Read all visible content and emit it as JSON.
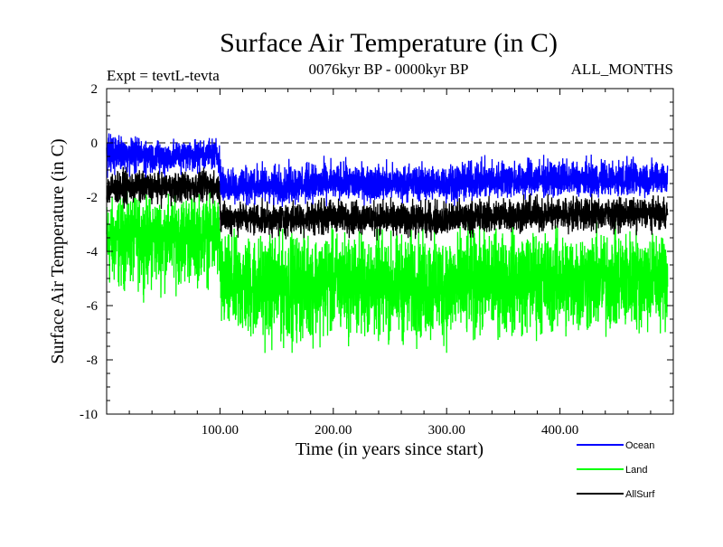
{
  "chart_data": {
    "type": "line",
    "title": "Surface Air Temperature (in C)",
    "subtitle_left": "Expt = tevtL-tevta",
    "subtitle_center": "0076kyr BP - 0000kyr BP",
    "subtitle_right": "ALL_MONTHS",
    "xlabel": "Time (in years since start)",
    "ylabel": "Surface Air Temperature (in C)",
    "xlim": [
      0,
      500
    ],
    "ylim": [
      -10,
      2
    ],
    "x_ticks": [
      {
        "value": 100,
        "label": "100.00"
      },
      {
        "value": 200,
        "label": "200.00"
      },
      {
        "value": 300,
        "label": "300.00"
      },
      {
        "value": 400,
        "label": "400.00"
      }
    ],
    "y_ticks": [
      {
        "value": 2,
        "label": "2"
      },
      {
        "value": 0,
        "label": "0"
      },
      {
        "value": -2,
        "label": "-2"
      },
      {
        "value": -4,
        "label": "-4"
      },
      {
        "value": -6,
        "label": "-6"
      },
      {
        "value": -8,
        "label": "-8"
      },
      {
        "value": -10,
        "label": "-10"
      }
    ],
    "reference_line": {
      "y": 0,
      "style": "dashed"
    },
    "legend": {
      "placement": "bottom-right"
    },
    "series": [
      {
        "name": "Land",
        "color": "#00ff00",
        "x": [
          0,
          25,
          50,
          75,
          99,
          101,
          150,
          200,
          250,
          300,
          350,
          400,
          450,
          495
        ],
        "mean": [
          -3.5,
          -3.4,
          -3.4,
          -3.3,
          -3.3,
          -5.1,
          -5.2,
          -5.1,
          -5.2,
          -5.2,
          -5.0,
          -5.0,
          -5.0,
          -4.9
        ],
        "min": [
          -6.2,
          -6.0,
          -6.1,
          -5.9,
          -5.8,
          -8.0,
          -8.3,
          -7.9,
          -8.1,
          -8.3,
          -7.8,
          -7.9,
          -7.8,
          -7.6
        ],
        "max": [
          -1.5,
          -1.4,
          -1.5,
          -1.3,
          -1.4,
          -2.8,
          -2.7,
          -2.6,
          -2.7,
          -2.6,
          -2.5,
          -2.6,
          -2.5,
          -2.6
        ]
      },
      {
        "name": "AllSurf",
        "color": "#000000",
        "x": [
          0,
          25,
          50,
          75,
          99,
          101,
          150,
          200,
          250,
          300,
          350,
          400,
          450,
          495
        ],
        "mean": [
          -1.7,
          -1.6,
          -1.6,
          -1.6,
          -1.6,
          -2.7,
          -2.8,
          -2.7,
          -2.8,
          -2.8,
          -2.7,
          -2.6,
          -2.6,
          -2.6
        ],
        "min": [
          -2.6,
          -2.5,
          -2.5,
          -2.5,
          -2.4,
          -3.6,
          -3.7,
          -3.6,
          -3.7,
          -3.7,
          -3.5,
          -3.5,
          -3.5,
          -3.4
        ],
        "max": [
          -0.8,
          -0.8,
          -0.9,
          -0.8,
          -0.8,
          -1.9,
          -2.0,
          -1.8,
          -1.9,
          -1.9,
          -1.7,
          -1.7,
          -1.8,
          -1.8
        ]
      },
      {
        "name": "Ocean",
        "color": "#0000ff",
        "x": [
          0,
          25,
          50,
          75,
          99,
          101,
          150,
          200,
          250,
          300,
          350,
          400,
          450,
          495
        ],
        "mean": [
          -0.4,
          -0.4,
          -0.5,
          -0.4,
          -0.4,
          -1.6,
          -1.6,
          -1.5,
          -1.5,
          -1.5,
          -1.4,
          -1.4,
          -1.4,
          -1.3
        ],
        "min": [
          -1.4,
          -1.4,
          -1.5,
          -1.3,
          -1.3,
          -2.5,
          -2.5,
          -2.4,
          -2.4,
          -2.4,
          -2.3,
          -2.2,
          -2.2,
          -2.2
        ],
        "max": [
          0.7,
          0.4,
          0.3,
          0.4,
          0.4,
          -0.4,
          -0.5,
          -0.4,
          -0.5,
          -0.5,
          -0.3,
          -0.3,
          -0.3,
          -0.3
        ]
      }
    ]
  }
}
